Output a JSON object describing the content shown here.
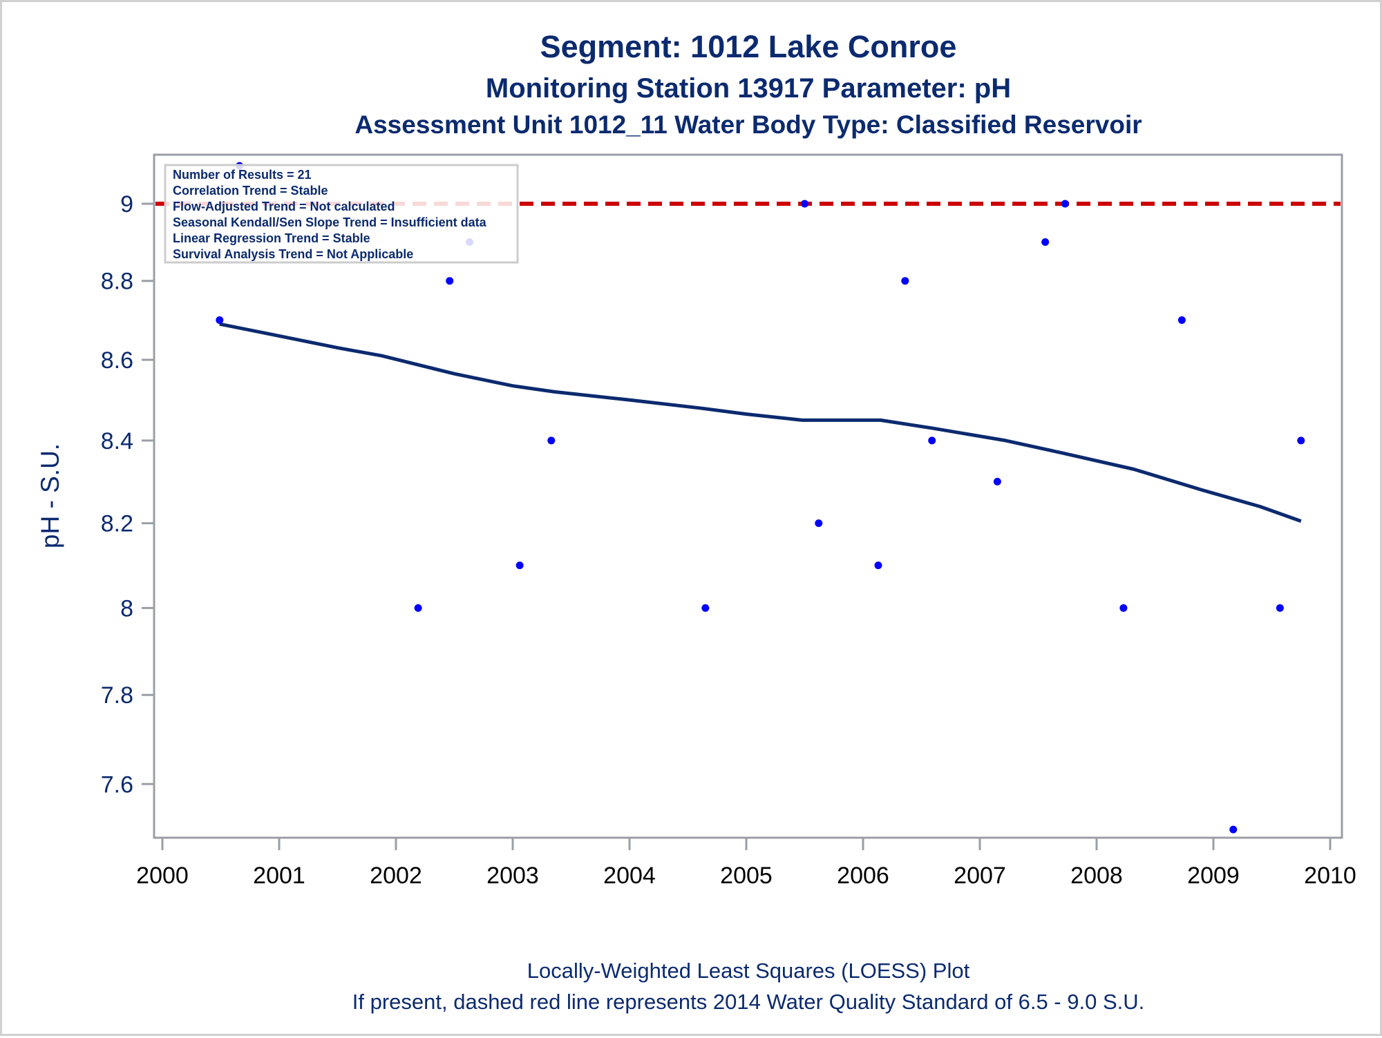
{
  "chart_data": {
    "type": "scatter",
    "titles": [
      "Segment: 1012  Lake Conroe",
      "Monitoring Station 13917 Parameter: pH",
      "Assessment Unit 1012_11   Water Body Type: Classified Reservoir"
    ],
    "xlabel": "",
    "ylabel": "pH - S.U.",
    "x_scale": "linear",
    "y_scale": "log",
    "xlim": [
      1999.94,
      2010.1
    ],
    "ylim": [
      7.48,
      9.12
    ],
    "xticks": [
      2000,
      2001,
      2002,
      2003,
      2004,
      2005,
      2006,
      2007,
      2008,
      2009,
      2010
    ],
    "xtick_labels": [
      "2000",
      "2001",
      "2002",
      "2003",
      "2004",
      "2005",
      "2006",
      "2007",
      "2008",
      "2009",
      "2010"
    ],
    "yticks": [
      7.6,
      7.8,
      8,
      8.2,
      8.4,
      8.6,
      8.8,
      9
    ],
    "ytick_labels": [
      "7.6",
      "7.8",
      "8",
      "8.2",
      "8.4",
      "8.6",
      "8.8",
      "9"
    ],
    "grid": false,
    "series": [
      {
        "name": "pH measurements",
        "type": "scatter",
        "color": "#0000ff",
        "points": [
          {
            "x": 2000.49,
            "y": 8.7
          },
          {
            "x": 2000.66,
            "y": 9.1
          },
          {
            "x": 2002.19,
            "y": 8.0
          },
          {
            "x": 2002.46,
            "y": 8.8
          },
          {
            "x": 2002.63,
            "y": 8.9
          },
          {
            "x": 2003.06,
            "y": 8.1
          },
          {
            "x": 2003.33,
            "y": 8.4
          },
          {
            "x": 2004.65,
            "y": 8.0
          },
          {
            "x": 2005.5,
            "y": 9.0
          },
          {
            "x": 2005.62,
            "y": 8.2
          },
          {
            "x": 2006.13,
            "y": 8.1
          },
          {
            "x": 2006.36,
            "y": 8.8
          },
          {
            "x": 2006.59,
            "y": 8.4
          },
          {
            "x": 2007.15,
            "y": 8.3
          },
          {
            "x": 2007.56,
            "y": 8.9
          },
          {
            "x": 2007.73,
            "y": 9.0
          },
          {
            "x": 2008.23,
            "y": 8.0
          },
          {
            "x": 2008.73,
            "y": 8.7
          },
          {
            "x": 2009.17,
            "y": 7.5
          },
          {
            "x": 2009.57,
            "y": 8.0
          },
          {
            "x": 2009.75,
            "y": 8.4
          }
        ]
      },
      {
        "name": "LOESS fit",
        "type": "line",
        "color": "#0b2a6f",
        "points": [
          {
            "x": 2000.49,
            "y": 8.69
          },
          {
            "x": 2001.0,
            "y": 8.66
          },
          {
            "x": 2001.5,
            "y": 8.63
          },
          {
            "x": 2001.88,
            "y": 8.61
          },
          {
            "x": 2002.5,
            "y": 8.565
          },
          {
            "x": 2003.0,
            "y": 8.535
          },
          {
            "x": 2003.36,
            "y": 8.52
          },
          {
            "x": 2004.0,
            "y": 8.5
          },
          {
            "x": 2004.6,
            "y": 8.48
          },
          {
            "x": 2005.0,
            "y": 8.465
          },
          {
            "x": 2005.48,
            "y": 8.45
          },
          {
            "x": 2006.15,
            "y": 8.45
          },
          {
            "x": 2006.6,
            "y": 8.43
          },
          {
            "x": 2007.22,
            "y": 8.4
          },
          {
            "x": 2007.7,
            "y": 8.37
          },
          {
            "x": 2008.32,
            "y": 8.33
          },
          {
            "x": 2008.9,
            "y": 8.28
          },
          {
            "x": 2009.4,
            "y": 8.24
          },
          {
            "x": 2009.75,
            "y": 8.205
          }
        ]
      },
      {
        "name": "Water Quality Standard",
        "type": "hline",
        "style": "dashed",
        "color": "#cc0000",
        "y": 9.0
      }
    ],
    "inset": {
      "placement": "top-left",
      "lines": [
        "Number of Results = 21",
        "Correlation Trend = Stable",
        "Flow-Adjusted Trend = Not calculated",
        "Seasonal Kendall/Sen Slope Trend = Insufficient data",
        "Linear Regression Trend = Stable",
        "Survival Analysis Trend = Not Applicable"
      ]
    },
    "footnotes": [
      "Locally-Weighted Least Squares (LOESS) Plot",
      "If present, dashed red line represents 2014 Water Quality Standard of 6.5 - 9.0 S.U."
    ]
  },
  "colors": {
    "text": "#0b2a6f",
    "axis": "#9a9fa6",
    "points": "#0000ff",
    "loess": "#0b2a6f",
    "standard_line": "#cc0000"
  }
}
